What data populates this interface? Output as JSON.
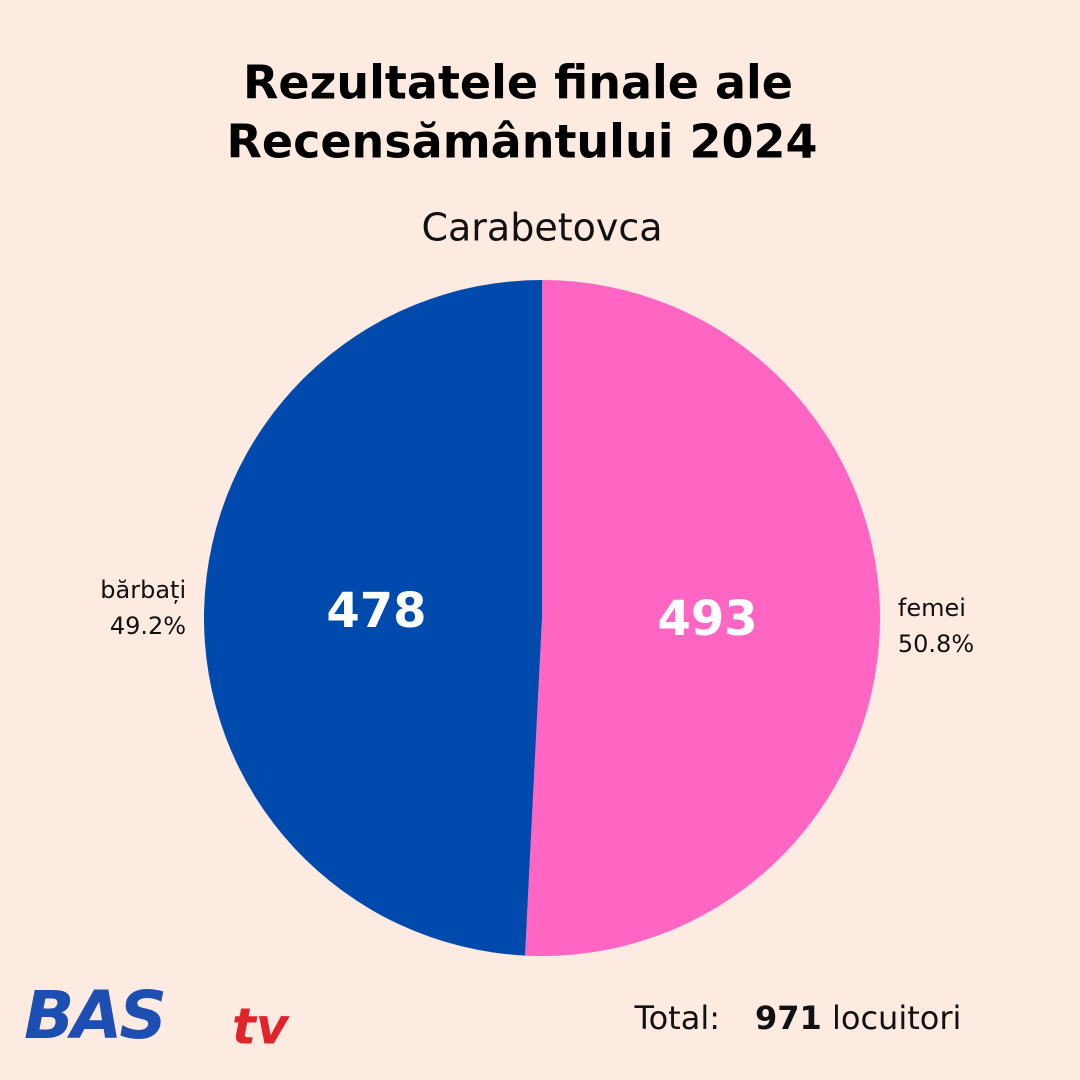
{
  "chart_data": {
    "type": "pie",
    "title": [
      "Rezultatele finale ale",
      "Recensământului 2024"
    ],
    "subtitle": "Carabetovca",
    "categories": [
      "femei",
      "bărbați"
    ],
    "values": [
      50.8,
      49.2
    ],
    "value_labels": [
      "50.8%",
      "49.2%"
    ],
    "counts": [
      493,
      478
    ],
    "colors": [
      "#ff66c4",
      "#004aad"
    ],
    "total_label": "Total:",
    "total": 971,
    "total_unit": "locuitori"
  },
  "logo": {
    "main": "BAS",
    "suffix": "tv"
  }
}
